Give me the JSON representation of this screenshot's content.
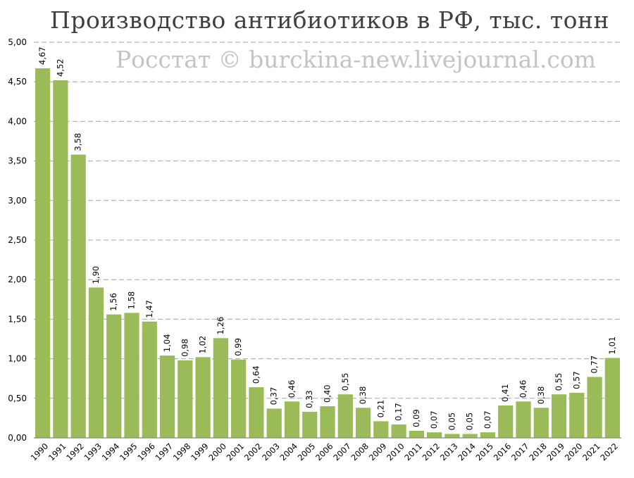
{
  "chart_data": {
    "type": "bar",
    "title": "Производство антибиотиков в РФ, тыс. тонн",
    "watermark": "Росстат © burckina-new.livejournal.com",
    "xlabel": "",
    "ylabel": "",
    "categories": [
      "1990",
      "1991",
      "1992",
      "1993",
      "1994",
      "1995",
      "1996",
      "1997",
      "1998",
      "1999",
      "2000",
      "2001",
      "2002",
      "2003",
      "2004",
      "2005",
      "2006",
      "2007",
      "2008",
      "2009",
      "2010",
      "2011",
      "2012",
      "2013",
      "2014",
      "2015",
      "2016",
      "2017",
      "2018",
      "2019",
      "2020",
      "2021",
      "2022"
    ],
    "values": [
      4.67,
      4.52,
      3.58,
      1.9,
      1.56,
      1.58,
      1.47,
      1.04,
      0.98,
      1.02,
      1.26,
      0.99,
      0.64,
      0.37,
      0.46,
      0.33,
      0.4,
      0.55,
      0.38,
      0.21,
      0.17,
      0.09,
      0.07,
      0.05,
      0.05,
      0.07,
      0.41,
      0.46,
      0.38,
      0.55,
      0.57,
      0.77,
      1.01
    ],
    "data_labels": [
      "4,67",
      "4,52",
      "3,58",
      "1,90",
      "1,56",
      "1,58",
      "1,47",
      "1,04",
      "0,98",
      "1,02",
      "1,26",
      "0,99",
      "0,64",
      "0,37",
      "0,46",
      "0,33",
      "0,40",
      "0,55",
      "0,38",
      "0,21",
      "0,17",
      "0,09",
      "0,07",
      "0,05",
      "0,05",
      "0,07",
      "0,41",
      "0,46",
      "0,38",
      "0,55",
      "0,57",
      "0,77",
      "1,01"
    ],
    "y_ticks": [
      0,
      0.5,
      1,
      1.5,
      2,
      2.5,
      3,
      3.5,
      4,
      4.5,
      5
    ],
    "y_tick_labels": [
      "0,00",
      "0,50",
      "1,00",
      "1,50",
      "2,00",
      "2,50",
      "3,00",
      "3,50",
      "4,00",
      "4,50",
      "5,00"
    ],
    "ylim": [
      0,
      5
    ],
    "grid": true,
    "legend": "none",
    "colors": {
      "bar": "#9bbb59",
      "grid": "#a6a6a6",
      "axis": "#868686",
      "title": "#404040",
      "watermark": "#c4c4c4",
      "text": "#000000"
    }
  }
}
